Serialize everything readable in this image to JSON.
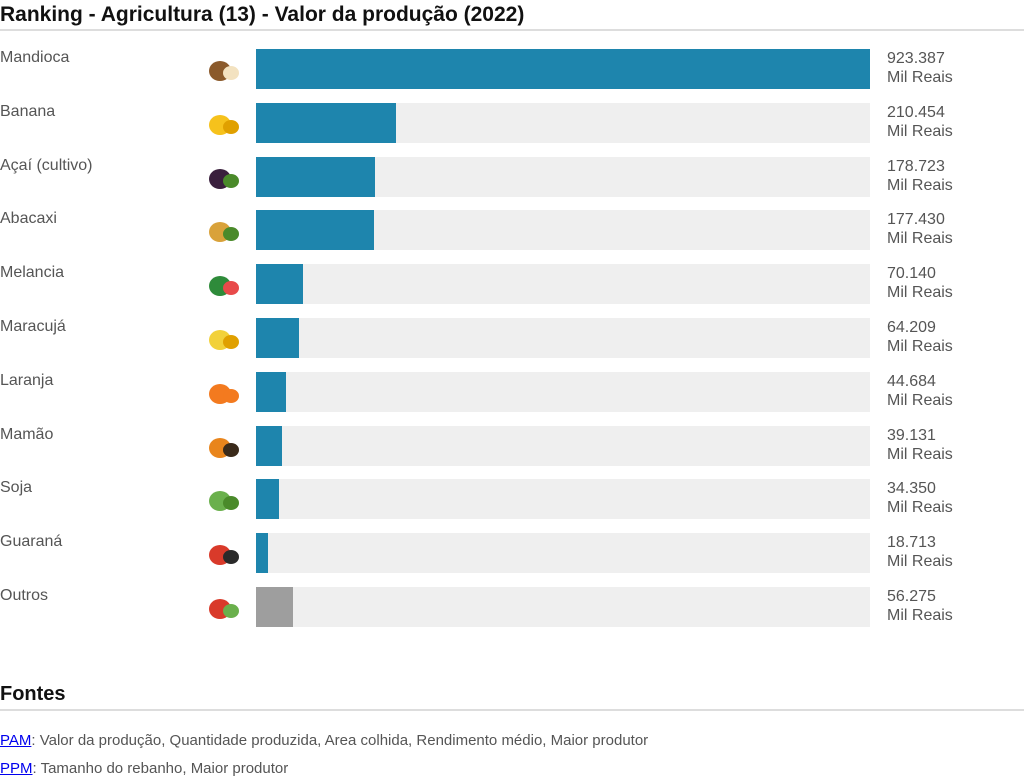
{
  "title": "Ranking - Agricultura (13) - Valor da produção (2022)",
  "colors": {
    "bar": "#1e85ad",
    "other_bar": "#9e9e9e",
    "track": "#efefef"
  },
  "chart_data": {
    "type": "bar",
    "orientation": "horizontal",
    "title": "Ranking - Agricultura (13) - Valor da produção (2022)",
    "unit": "Mil Reais",
    "categories": [
      "Mandioca",
      "Banana",
      "Açaí (cultivo)",
      "Abacaxi",
      "Melancia",
      "Maracujá",
      "Laranja",
      "Mamão",
      "Soja",
      "Guaraná",
      "Outros"
    ],
    "values": [
      923387,
      210454,
      178723,
      177430,
      70140,
      64209,
      44684,
      39131,
      34350,
      18713,
      56275
    ],
    "value_labels": [
      "923.387",
      "210.454",
      "178.723",
      "177.430",
      "70.140",
      "64.209",
      "44.684",
      "39.131",
      "34.350",
      "18.713",
      "56.275"
    ],
    "icons": [
      "cassava-icon",
      "banana-icon",
      "acai-icon",
      "pineapple-icon",
      "watermelon-icon",
      "passion-fruit-icon",
      "orange-icon",
      "papaya-icon",
      "soybean-icon",
      "guarana-icon",
      "mixed-produce-icon"
    ],
    "xlim": [
      0,
      923387
    ]
  },
  "fontes": {
    "heading": "Fontes",
    "items": [
      {
        "link": "PAM",
        "text": ": Valor da produção, Quantidade produzida, Area colhida, Rendimento médio, Maior produtor"
      },
      {
        "link": "PPM",
        "text": ": Tamanho do rebanho, Maior produtor"
      }
    ]
  }
}
